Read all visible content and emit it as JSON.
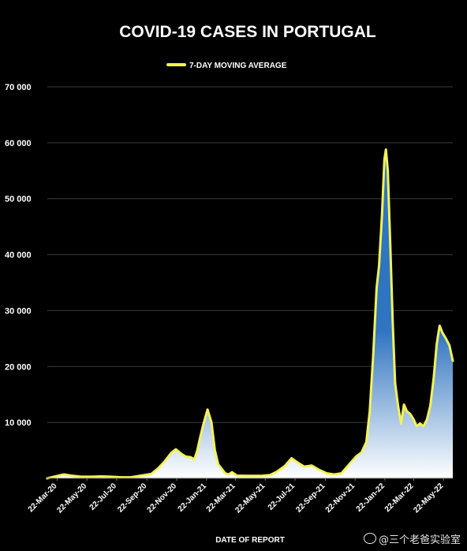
{
  "chart_data": {
    "type": "area",
    "title": "COVID-19 CASES IN PORTUGAL",
    "legend": {
      "label": "7-DAY MOVING AVERAGE",
      "placement": "top-center"
    },
    "xlabel": "DATE OF REPORT",
    "ylabel": "",
    "ylim": [
      0,
      70000
    ],
    "yticks": [
      10000,
      20000,
      30000,
      40000,
      50000,
      60000,
      70000
    ],
    "ytick_labels": [
      "10 000",
      "20 000",
      "30 000",
      "40 000",
      "50 000",
      "60 000",
      "70 000"
    ],
    "grid": true,
    "xlim": [
      "2020-03-02",
      "2022-06-10"
    ],
    "xticks": [
      {
        "date": "2020-03-22",
        "label": "22-Mar-20"
      },
      {
        "date": "2020-05-22",
        "label": "22-May-20"
      },
      {
        "date": "2020-07-22",
        "label": "22-Jul-20"
      },
      {
        "date": "2020-09-22",
        "label": "22-Sep-20"
      },
      {
        "date": "2020-11-22",
        "label": "22-Nov-20"
      },
      {
        "date": "2021-01-22",
        "label": "22-Jan-21"
      },
      {
        "date": "2021-03-22",
        "label": "22-Mar-21"
      },
      {
        "date": "2021-05-22",
        "label": "22-May-21"
      },
      {
        "date": "2021-07-22",
        "label": "22-Jul-21"
      },
      {
        "date": "2021-09-22",
        "label": "22-Sep-21"
      },
      {
        "date": "2021-11-22",
        "label": "22-Nov-21"
      },
      {
        "date": "2022-01-22",
        "label": "22-Jan-22"
      },
      {
        "date": "2022-03-22",
        "label": "22-Mar-22"
      },
      {
        "date": "2022-05-22",
        "label": "22-May-22"
      }
    ],
    "series": [
      {
        "name": "7-DAY MOVING AVERAGE",
        "color": "#f2f25a",
        "fill_top": "#2f74c0",
        "fill_bottom": "#ffffff",
        "points": [
          [
            "2020-03-02",
            0
          ],
          [
            "2020-03-20",
            400
          ],
          [
            "2020-04-05",
            700
          ],
          [
            "2020-04-20",
            500
          ],
          [
            "2020-05-10",
            300
          ],
          [
            "2020-06-01",
            300
          ],
          [
            "2020-06-20",
            350
          ],
          [
            "2020-07-10",
            300
          ],
          [
            "2020-08-01",
            200
          ],
          [
            "2020-08-20",
            200
          ],
          [
            "2020-09-10",
            500
          ],
          [
            "2020-10-01",
            800
          ],
          [
            "2020-10-15",
            1800
          ],
          [
            "2020-10-28",
            3000
          ],
          [
            "2020-11-10",
            4500
          ],
          [
            "2020-11-20",
            5200
          ],
          [
            "2020-12-01",
            4400
          ],
          [
            "2020-12-10",
            3900
          ],
          [
            "2020-12-20",
            3800
          ],
          [
            "2020-12-28",
            3400
          ],
          [
            "2021-01-03",
            5000
          ],
          [
            "2021-01-08",
            7000
          ],
          [
            "2021-01-15",
            9500
          ],
          [
            "2021-01-24",
            12300
          ],
          [
            "2021-02-01",
            10000
          ],
          [
            "2021-02-08",
            5000
          ],
          [
            "2021-02-15",
            2500
          ],
          [
            "2021-03-01",
            900
          ],
          [
            "2021-03-08",
            700
          ],
          [
            "2021-03-15",
            1100
          ],
          [
            "2021-03-25",
            500
          ],
          [
            "2021-04-15",
            450
          ],
          [
            "2021-05-15",
            450
          ],
          [
            "2021-06-01",
            600
          ],
          [
            "2021-06-15",
            1200
          ],
          [
            "2021-07-01",
            2200
          ],
          [
            "2021-07-15",
            3600
          ],
          [
            "2021-07-28",
            2800
          ],
          [
            "2021-08-10",
            2100
          ],
          [
            "2021-08-25",
            2300
          ],
          [
            "2021-09-10",
            1500
          ],
          [
            "2021-09-25",
            900
          ],
          [
            "2021-10-10",
            700
          ],
          [
            "2021-10-25",
            900
          ],
          [
            "2021-11-10",
            2500
          ],
          [
            "2021-11-25",
            4000
          ],
          [
            "2021-12-05",
            4600
          ],
          [
            "2021-12-15",
            6500
          ],
          [
            "2021-12-22",
            12000
          ],
          [
            "2021-12-29",
            22000
          ],
          [
            "2022-01-05",
            34000
          ],
          [
            "2022-01-10",
            38000
          ],
          [
            "2022-01-16",
            47000
          ],
          [
            "2022-01-21",
            57000
          ],
          [
            "2022-01-24",
            58800
          ],
          [
            "2022-01-28",
            55000
          ],
          [
            "2022-02-02",
            42000
          ],
          [
            "2022-02-07",
            28000
          ],
          [
            "2022-02-12",
            17000
          ],
          [
            "2022-02-18",
            13000
          ],
          [
            "2022-02-24",
            9800
          ],
          [
            "2022-03-02",
            13200
          ],
          [
            "2022-03-08",
            12000
          ],
          [
            "2022-03-15",
            11500
          ],
          [
            "2022-03-22",
            10500
          ],
          [
            "2022-03-28",
            9300
          ],
          [
            "2022-04-04",
            9800
          ],
          [
            "2022-04-11",
            9300
          ],
          [
            "2022-04-18",
            10500
          ],
          [
            "2022-04-25",
            13000
          ],
          [
            "2022-05-02",
            18000
          ],
          [
            "2022-05-08",
            24000
          ],
          [
            "2022-05-14",
            27300
          ],
          [
            "2022-05-20",
            26000
          ],
          [
            "2022-05-27",
            25000
          ],
          [
            "2022-06-03",
            23800
          ],
          [
            "2022-06-10",
            21000
          ]
        ]
      }
    ]
  },
  "watermark": "@三个老爸实验室"
}
